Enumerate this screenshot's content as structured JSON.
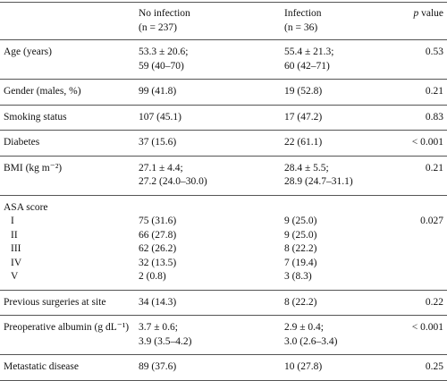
{
  "header": {
    "no_infection": [
      "No infection",
      "(n = 237)"
    ],
    "infection": [
      "Infection",
      "(n = 36)"
    ],
    "p_var": "p",
    "p_text": "value"
  },
  "rows": [
    {
      "label": "Age (years)",
      "no_infection": [
        "53.3 ± 20.6;",
        "59 (40–70)"
      ],
      "infection": [
        "55.4 ± 21.3;",
        "60 (42–71)"
      ],
      "p": "0.53"
    },
    {
      "label": "Gender (males, %)",
      "no_infection": [
        "99 (41.8)"
      ],
      "infection": [
        "19 (52.8)"
      ],
      "p": "0.21"
    },
    {
      "label": "Smoking status",
      "no_infection": [
        "107 (45.1)"
      ],
      "infection": [
        "17 (47.2)"
      ],
      "p": "0.83"
    },
    {
      "label": "Diabetes",
      "no_infection": [
        "37 (15.6)"
      ],
      "infection": [
        "22 (61.1)"
      ],
      "p": "< 0.001"
    },
    {
      "label": "BMI (kg m⁻²)",
      "no_infection": [
        "27.1 ± 4.4;",
        "27.2 (24.0–30.0)"
      ],
      "infection": [
        "28.4 ± 5.5;",
        "28.9 (24.7–31.1)"
      ],
      "p": "0.21"
    },
    {
      "label": "ASA score",
      "p": "0.027",
      "sub": [
        {
          "label": "I",
          "no_infection": "75 (31.6)",
          "infection": "9 (25.0)"
        },
        {
          "label": "II",
          "no_infection": "66 (27.8)",
          "infection": "9 (25.0)"
        },
        {
          "label": "III",
          "no_infection": "62 (26.2)",
          "infection": "8 (22.2)"
        },
        {
          "label": "IV",
          "no_infection": "32 (13.5)",
          "infection": "7 (19.4)"
        },
        {
          "label": "V",
          "no_infection": "2 (0.8)",
          "infection": "3 (8.3)"
        }
      ]
    },
    {
      "label": "Previous surgeries at site",
      "no_infection": [
        "34 (14.3)"
      ],
      "infection": [
        "8 (22.2)"
      ],
      "p": "0.22"
    },
    {
      "label": "Preoperative albumin (g dL⁻¹)",
      "no_infection": [
        "3.7 ± 0.6;",
        "3.9 (3.5–4.2)"
      ],
      "infection": [
        "2.9 ± 0.4;",
        "3.0 (2.6–3.4)"
      ],
      "p": "< 0.001"
    },
    {
      "label": "Metastatic disease",
      "no_infection": [
        "89 (37.6)"
      ],
      "infection": [
        "10 (27.8)"
      ],
      "p": "0.25"
    }
  ]
}
